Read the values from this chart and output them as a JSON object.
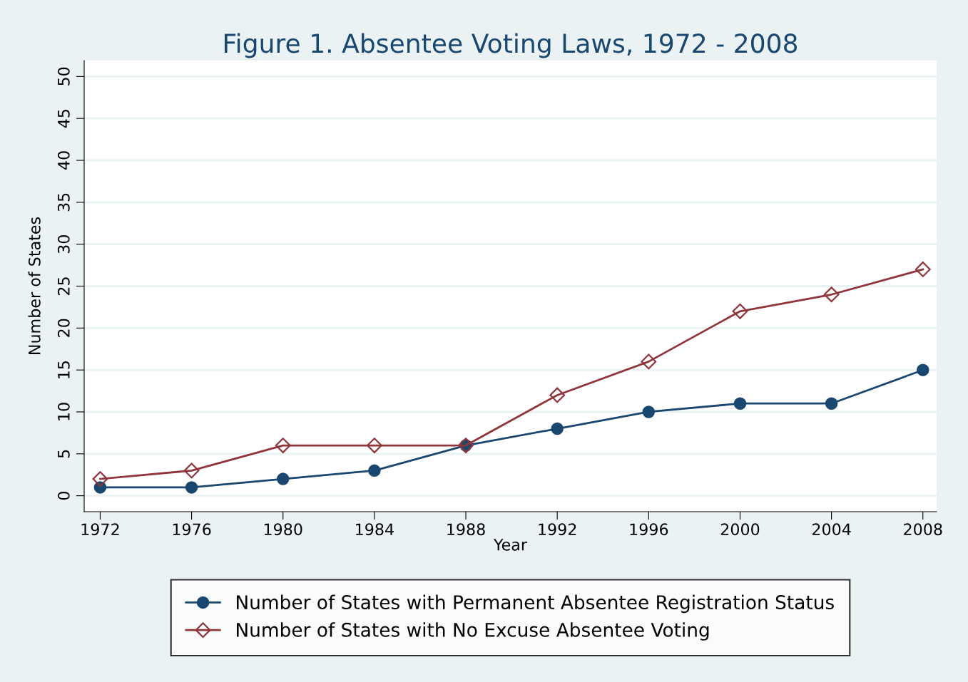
{
  "chart_data": {
    "type": "line",
    "title": "Figure 1. Absentee Voting Laws, 1972 - 2008",
    "xlabel": "Year",
    "ylabel": "Number of States",
    "x": [
      1972,
      1976,
      1980,
      1984,
      1988,
      1992,
      1996,
      2000,
      2004,
      2008
    ],
    "series": [
      {
        "name": "Number of States with Permanent Absentee Registration Status",
        "color": "#1a476f",
        "marker": "circle",
        "values": [
          1,
          1,
          2,
          3,
          6,
          8,
          10,
          11,
          11,
          15
        ]
      },
      {
        "name": "Number of States with No Excuse Absentee Voting",
        "color": "#90353b",
        "marker": "diamond",
        "values": [
          2,
          3,
          6,
          6,
          6,
          12,
          16,
          22,
          24,
          27
        ]
      }
    ],
    "xlim": [
      1971.3,
      2008.6
    ],
    "xticks": [
      1972,
      1976,
      1980,
      1984,
      1988,
      1992,
      1996,
      2000,
      2004,
      2008
    ],
    "ylim": [
      -1.9,
      51.9
    ],
    "yticks": [
      0,
      5,
      10,
      15,
      20,
      25,
      30,
      35,
      40,
      45,
      50
    ],
    "grid": "y",
    "legend": "bottom"
  }
}
